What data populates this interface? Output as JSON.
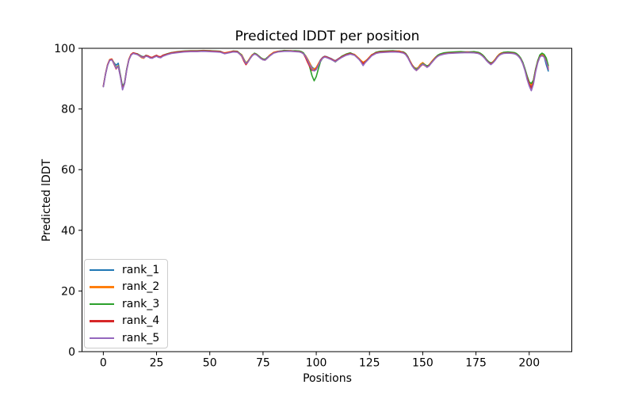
{
  "chart_data": {
    "type": "line",
    "title": "Predicted lDDT per position",
    "xlabel": "Positions",
    "ylabel": "Predicted lDDT",
    "xlim": [
      -10,
      220
    ],
    "ylim": [
      0,
      100
    ],
    "x_ticks": [
      0,
      25,
      50,
      75,
      100,
      125,
      150,
      175,
      200
    ],
    "y_ticks": [
      0,
      20,
      40,
      60,
      80,
      100
    ],
    "grid": false,
    "legend_position": "lower left",
    "x": [
      0,
      1,
      2,
      3,
      4,
      5,
      6,
      7,
      8,
      9,
      10,
      11,
      12,
      13,
      14,
      16,
      18,
      19,
      20,
      21,
      22,
      23,
      24,
      25,
      26,
      27,
      28,
      30,
      32,
      35,
      38,
      41,
      44,
      47,
      50,
      53,
      55,
      57,
      59,
      61,
      63,
      65,
      66,
      67,
      68,
      69,
      70,
      71,
      72,
      73,
      74,
      75,
      76,
      77,
      78,
      80,
      82,
      85,
      88,
      90,
      92,
      93,
      94,
      95,
      96,
      97,
      98,
      99,
      100,
      101,
      102,
      103,
      104,
      105,
      106,
      107,
      108,
      109,
      110,
      112,
      114,
      116,
      118,
      120,
      121,
      122,
      123,
      124,
      126,
      128,
      130,
      133,
      136,
      139,
      141,
      142,
      143,
      144,
      145,
      146,
      147,
      148,
      149,
      150,
      151,
      152,
      153,
      154,
      155,
      156,
      157,
      158,
      160,
      162,
      165,
      168,
      171,
      174,
      176,
      177,
      178,
      179,
      180,
      181,
      182,
      183,
      184,
      185,
      186,
      187,
      188,
      190,
      192,
      193,
      194,
      195,
      196,
      197,
      198,
      199,
      200,
      201,
      202,
      203,
      204,
      205,
      206,
      207,
      208,
      209
    ],
    "series": [
      {
        "name": "rank_1",
        "color": "#1f77b4",
        "values": [
          87.5,
          91.6,
          94.5,
          96.2,
          96.4,
          95.3,
          94.4,
          95.1,
          91.2,
          87.4,
          88.7,
          93.1,
          96.3,
          97.9,
          98.5,
          98.1,
          97.4,
          97.2,
          97.6,
          97.4,
          97.0,
          96.9,
          97.3,
          97.6,
          97.2,
          97.1,
          97.6,
          98.1,
          98.5,
          98.8,
          99.0,
          99.1,
          99.1,
          99.2,
          99.1,
          99.0,
          98.9,
          98.4,
          98.7,
          99.0,
          98.9,
          97.8,
          96.4,
          94.8,
          95.8,
          96.9,
          97.8,
          98.3,
          98.0,
          97.4,
          96.8,
          96.4,
          96.3,
          96.9,
          97.6,
          98.6,
          99.0,
          99.2,
          99.2,
          99.1,
          99.0,
          98.8,
          98.4,
          97.5,
          96.3,
          95.0,
          93.8,
          93.2,
          93.6,
          94.9,
          96.2,
          97.0,
          97.4,
          97.2,
          96.9,
          96.6,
          96.2,
          95.9,
          96.4,
          97.3,
          98.0,
          98.4,
          97.9,
          96.6,
          95.8,
          95.1,
          95.6,
          96.3,
          97.8,
          98.6,
          98.9,
          99.0,
          99.1,
          99.0,
          98.7,
          98.2,
          97.2,
          95.8,
          94.5,
          93.7,
          93.4,
          93.7,
          94.4,
          94.9,
          94.5,
          94.0,
          94.5,
          95.4,
          96.2,
          97.0,
          97.6,
          98.0,
          98.4,
          98.6,
          98.7,
          98.8,
          98.8,
          98.8,
          98.6,
          98.3,
          97.8,
          97.1,
          96.2,
          95.5,
          95.1,
          95.5,
          96.3,
          97.3,
          98.0,
          98.4,
          98.6,
          98.7,
          98.6,
          98.5,
          98.2,
          97.6,
          96.7,
          95.3,
          93.2,
          90.8,
          88.8,
          87.7,
          89.3,
          93.0,
          95.7,
          97.4,
          97.9,
          97.3,
          94.6,
          92.5
        ]
      },
      {
        "name": "rank_2",
        "color": "#ff7f0e",
        "values": [
          87.6,
          91.5,
          94.6,
          96.3,
          96.5,
          95.2,
          93.6,
          94.3,
          91.0,
          86.9,
          88.5,
          93.0,
          96.4,
          98.0,
          98.5,
          98.0,
          96.9,
          96.7,
          97.5,
          97.3,
          97.1,
          96.8,
          97.2,
          97.5,
          97.3,
          97.0,
          97.5,
          98.0,
          98.4,
          98.8,
          99.0,
          99.0,
          99.1,
          99.1,
          99.2,
          99.0,
          98.8,
          98.5,
          98.8,
          99.0,
          98.8,
          97.9,
          96.5,
          95.2,
          95.9,
          97.0,
          97.9,
          98.2,
          97.9,
          97.3,
          96.7,
          96.2,
          96.1,
          96.8,
          97.7,
          98.7,
          99.0,
          99.1,
          99.2,
          99.0,
          98.9,
          98.7,
          98.3,
          97.6,
          96.4,
          95.1,
          93.4,
          93.1,
          93.7,
          95.0,
          96.0,
          96.9,
          97.3,
          97.1,
          96.8,
          96.5,
          96.1,
          95.8,
          96.3,
          97.2,
          97.9,
          98.3,
          98.0,
          96.7,
          96.0,
          95.4,
          95.8,
          96.4,
          97.9,
          98.5,
          98.8,
          99.0,
          99.0,
          99.1,
          98.6,
          98.1,
          97.1,
          95.9,
          94.6,
          93.7,
          93.2,
          93.8,
          94.8,
          95.3,
          94.7,
          94.1,
          94.6,
          95.5,
          96.3,
          97.1,
          97.5,
          97.9,
          98.3,
          98.5,
          98.6,
          98.7,
          98.8,
          98.7,
          98.5,
          98.2,
          97.7,
          97.0,
          96.1,
          95.4,
          95.0,
          95.6,
          96.4,
          97.4,
          98.1,
          98.5,
          98.5,
          98.6,
          98.5,
          98.4,
          98.1,
          97.5,
          96.6,
          95.1,
          93.1,
          90.7,
          88.7,
          87.9,
          89.2,
          92.9,
          95.8,
          97.5,
          98.0,
          97.5,
          95.9,
          93.7
        ]
      },
      {
        "name": "rank_3",
        "color": "#2ca02c",
        "values": [
          87.4,
          91.4,
          94.4,
          96.1,
          96.3,
          95.1,
          93.5,
          94.2,
          91.1,
          87.2,
          88.6,
          93.2,
          96.2,
          97.8,
          98.4,
          98.2,
          97.3,
          97.0,
          97.7,
          97.5,
          96.9,
          97.0,
          97.4,
          97.7,
          97.1,
          97.2,
          97.7,
          98.2,
          98.6,
          98.9,
          99.1,
          99.2,
          99.2,
          99.3,
          99.2,
          99.1,
          99.0,
          98.3,
          98.6,
          99.1,
          99.0,
          97.7,
          96.3,
          95.1,
          95.7,
          96.8,
          97.7,
          98.4,
          98.1,
          97.5,
          96.9,
          96.5,
          96.4,
          97.0,
          97.5,
          98.5,
          98.9,
          99.3,
          99.1,
          99.2,
          99.1,
          98.9,
          98.5,
          97.4,
          96.1,
          93.6,
          91.0,
          89.3,
          90.7,
          93.3,
          95.6,
          96.8,
          97.2,
          97.0,
          96.7,
          96.4,
          96.0,
          95.5,
          96.1,
          97.4,
          98.1,
          98.5,
          97.8,
          96.5,
          95.7,
          95.0,
          95.5,
          96.2,
          97.7,
          98.7,
          99.0,
          99.1,
          99.2,
          98.9,
          98.8,
          98.3,
          97.3,
          95.7,
          94.4,
          93.5,
          93.0,
          93.5,
          94.3,
          95.0,
          94.6,
          94.2,
          94.4,
          95.3,
          96.1,
          96.9,
          97.7,
          98.1,
          98.5,
          98.7,
          98.8,
          98.9,
          98.7,
          98.9,
          98.7,
          98.4,
          97.9,
          97.2,
          96.3,
          95.6,
          95.2,
          95.4,
          96.2,
          97.2,
          97.9,
          98.3,
          98.7,
          98.8,
          98.7,
          98.6,
          98.3,
          97.7,
          96.8,
          95.4,
          93.3,
          90.9,
          88.9,
          88.4,
          89.5,
          93.1,
          95.9,
          97.8,
          98.4,
          98.0,
          96.8,
          94.3
        ]
      },
      {
        "name": "rank_4",
        "color": "#d62728",
        "values": [
          87.5,
          91.5,
          94.5,
          96.2,
          96.4,
          94.8,
          93.2,
          94.1,
          90.8,
          86.8,
          88.4,
          92.9,
          96.3,
          97.9,
          98.5,
          98.1,
          97.2,
          97.1,
          97.6,
          97.5,
          97.1,
          97.0,
          97.4,
          97.7,
          97.3,
          97.2,
          97.7,
          98.1,
          98.5,
          98.8,
          99.0,
          99.1,
          99.1,
          99.2,
          99.1,
          99.0,
          98.9,
          98.4,
          98.7,
          99.0,
          98.9,
          97.4,
          95.8,
          94.6,
          95.6,
          96.7,
          97.7,
          98.2,
          97.9,
          97.3,
          96.7,
          96.3,
          96.2,
          96.8,
          97.5,
          98.5,
          98.9,
          99.1,
          99.1,
          99.0,
          98.9,
          98.7,
          98.2,
          96.9,
          95.3,
          93.9,
          92.7,
          92.8,
          93.2,
          94.6,
          96.0,
          96.9,
          97.3,
          97.1,
          96.8,
          96.5,
          96.1,
          95.8,
          96.3,
          97.2,
          97.9,
          98.3,
          97.8,
          96.5,
          95.7,
          95.0,
          95.5,
          96.2,
          97.7,
          98.5,
          98.8,
          98.9,
          99.0,
          98.9,
          98.6,
          98.1,
          97.1,
          95.7,
          94.4,
          93.3,
          92.7,
          93.3,
          94.1,
          94.7,
          94.3,
          93.8,
          94.3,
          95.2,
          96.0,
          96.8,
          97.4,
          97.8,
          98.2,
          98.4,
          98.5,
          98.6,
          98.7,
          98.6,
          98.4,
          98.1,
          97.6,
          96.9,
          96.0,
          95.3,
          94.9,
          95.3,
          96.1,
          97.1,
          97.8,
          98.2,
          98.4,
          98.5,
          98.4,
          98.3,
          98.0,
          97.4,
          96.5,
          95.0,
          92.8,
          90.3,
          88.3,
          86.9,
          88.8,
          92.6,
          95.4,
          97.2,
          97.7,
          97.2,
          95.6,
          93.1
        ]
      },
      {
        "name": "rank_5",
        "color": "#9467bd",
        "values": [
          87.3,
          91.3,
          94.3,
          96.0,
          96.2,
          95.0,
          93.4,
          94.0,
          90.6,
          86.3,
          88.3,
          92.8,
          96.1,
          97.7,
          98.3,
          97.9,
          97.1,
          96.9,
          97.4,
          97.2,
          96.8,
          96.7,
          97.1,
          97.4,
          97.0,
          96.9,
          97.4,
          97.9,
          98.3,
          98.6,
          98.8,
          98.9,
          98.9,
          99.0,
          98.9,
          98.8,
          98.7,
          98.2,
          98.5,
          98.8,
          98.7,
          97.6,
          96.2,
          95.0,
          95.6,
          96.7,
          97.6,
          98.1,
          97.8,
          97.2,
          96.6,
          96.2,
          96.1,
          96.7,
          97.4,
          98.4,
          98.8,
          99.0,
          99.0,
          98.9,
          98.8,
          98.6,
          98.2,
          97.3,
          96.0,
          94.5,
          93.1,
          92.5,
          93.0,
          94.4,
          95.8,
          96.7,
          97.1,
          96.9,
          96.6,
          96.3,
          95.9,
          95.6,
          96.1,
          97.0,
          97.7,
          98.1,
          97.7,
          96.4,
          95.5,
          94.3,
          95.3,
          96.0,
          97.5,
          98.3,
          98.6,
          98.7,
          98.8,
          98.7,
          98.4,
          97.9,
          96.9,
          95.5,
          94.2,
          93.3,
          92.7,
          93.4,
          94.2,
          94.8,
          94.4,
          93.7,
          94.2,
          95.1,
          95.9,
          96.7,
          97.3,
          97.7,
          98.1,
          98.3,
          98.4,
          98.5,
          98.6,
          98.5,
          98.3,
          98.0,
          97.5,
          96.8,
          95.9,
          95.2,
          94.6,
          95.2,
          96.0,
          97.0,
          97.7,
          98.1,
          98.3,
          98.4,
          98.3,
          98.2,
          97.9,
          97.3,
          96.4,
          94.9,
          92.7,
          89.8,
          87.6,
          86.0,
          88.2,
          92.2,
          95.2,
          97.1,
          97.6,
          97.1,
          95.5,
          93.2
        ]
      }
    ]
  }
}
